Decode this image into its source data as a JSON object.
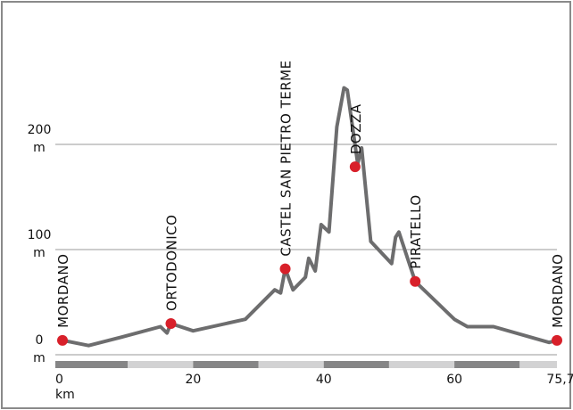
{
  "chart_data": {
    "type": "line",
    "title": "",
    "xlabel": "km",
    "ylabel": "m",
    "xlim": [
      0,
      75.7
    ],
    "ylim": [
      0,
      250
    ],
    "grid": true,
    "x_ticks": [
      {
        "value": 0,
        "label": "0"
      },
      {
        "value": 20,
        "label": "20"
      },
      {
        "value": 40,
        "label": "40"
      },
      {
        "value": 60,
        "label": "60"
      },
      {
        "value": 75.7,
        "label": "75,7"
      }
    ],
    "y_ticks": [
      {
        "value": 0,
        "label": "0"
      },
      {
        "value": 100,
        "label": "100"
      },
      {
        "value": 200,
        "label": "200"
      }
    ],
    "y_unit": "m",
    "x_unit": "km",
    "km_scale_bands": [
      0,
      10,
      20,
      30,
      40,
      50,
      60,
      70,
      75.7
    ],
    "colors": {
      "line": "#6d6d6e",
      "point": "#d8202a",
      "band_dark": "#858586",
      "band_light": "#d2d2d3",
      "grid": "#9a9a9a",
      "frame": "#8a8a8a"
    },
    "profile": [
      {
        "x": 0,
        "y": 12
      },
      {
        "x": 4,
        "y": 7
      },
      {
        "x": 9,
        "y": 15
      },
      {
        "x": 15,
        "y": 25
      },
      {
        "x": 16,
        "y": 19
      },
      {
        "x": 16.6,
        "y": 28
      },
      {
        "x": 20,
        "y": 21
      },
      {
        "x": 28,
        "y": 32
      },
      {
        "x": 32.5,
        "y": 60
      },
      {
        "x": 33.4,
        "y": 57
      },
      {
        "x": 34.1,
        "y": 80
      },
      {
        "x": 35.3,
        "y": 60
      },
      {
        "x": 37.2,
        "y": 72
      },
      {
        "x": 37.7,
        "y": 90
      },
      {
        "x": 38.7,
        "y": 78
      },
      {
        "x": 39.6,
        "y": 122
      },
      {
        "x": 40.8,
        "y": 115
      },
      {
        "x": 42,
        "y": 215
      },
      {
        "x": 43.1,
        "y": 252
      },
      {
        "x": 43.6,
        "y": 250
      },
      {
        "x": 45.2,
        "y": 180
      },
      {
        "x": 45.8,
        "y": 195
      },
      {
        "x": 47.2,
        "y": 106
      },
      {
        "x": 50.4,
        "y": 85
      },
      {
        "x": 51,
        "y": 110
      },
      {
        "x": 51.5,
        "y": 115
      },
      {
        "x": 54,
        "y": 68
      },
      {
        "x": 60,
        "y": 32
      },
      {
        "x": 62,
        "y": 25
      },
      {
        "x": 66,
        "y": 25
      },
      {
        "x": 74.5,
        "y": 10
      },
      {
        "x": 75.7,
        "y": 12
      }
    ],
    "places": [
      {
        "name": "MORDANO",
        "x": 0,
        "y": 12
      },
      {
        "name": "ORTODONICO",
        "x": 16.6,
        "y": 28
      },
      {
        "name": "CASTEL SAN PIETRO TERME",
        "x": 34.1,
        "y": 80
      },
      {
        "name": "DOZZA",
        "x": 44.8,
        "y": 177
      },
      {
        "name": "PIRATELLO",
        "x": 54,
        "y": 68
      },
      {
        "name": "MORDANO",
        "x": 75.7,
        "y": 12
      }
    ]
  }
}
